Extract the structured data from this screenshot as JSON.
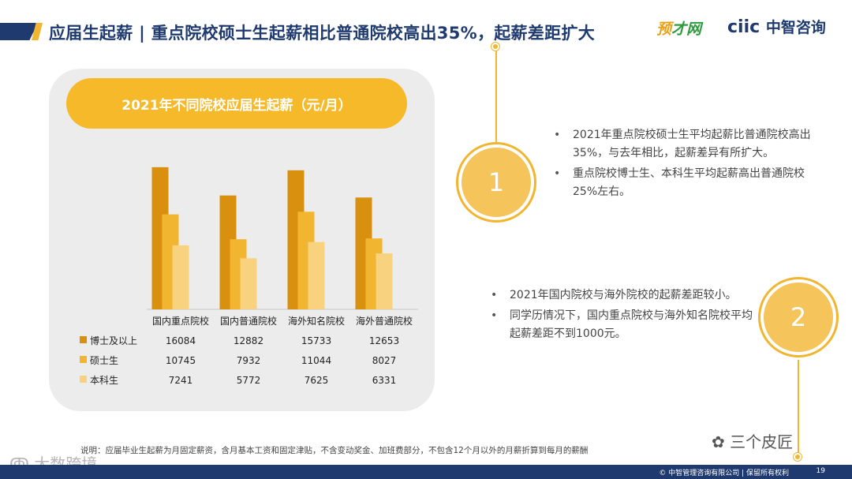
{
  "header": {
    "title": "应届生起薪 | 重点院校硕士生起薪相比普通院校高出35%，起薪差距扩大",
    "logo_left_a": "预",
    "logo_left_b": "才网",
    "logo_right_a": "ciic",
    "logo_right_b": "中智咨询"
  },
  "chart_data": {
    "type": "bar",
    "title": "2021年不同院校应届生起薪（元/月）",
    "categories": [
      "国内重点院校",
      "国内普通院校",
      "海外知名院校",
      "海外普通院校"
    ],
    "series": [
      {
        "name": "博士及以上",
        "values": [
          16084,
          12882,
          15733,
          12653
        ],
        "color": "#d9900f"
      },
      {
        "name": "硕士生",
        "values": [
          10745,
          7932,
          11044,
          8027
        ],
        "color": "#f2b530"
      },
      {
        "name": "本科生",
        "values": [
          7241,
          5772,
          7625,
          6331
        ],
        "color": "#f8d27e"
      }
    ],
    "ylim": [
      0,
      17500
    ],
    "legend": "data-table-left",
    "grid": false
  },
  "point1": {
    "number": "1",
    "bullets": [
      "2021年重点院校硕士生平均起薪比普通院校高出35%，与去年相比，起薪差异有所扩大。",
      "重点院校博士生、本科生平均起薪高出普通院校25%左右。"
    ]
  },
  "point2": {
    "number": "2",
    "bullets": [
      "2021年国内院校与海外院校的起薪差距较小。",
      "同学历情况下，国内重点院校与海外知名院校平均起薪差距不到1000元。"
    ]
  },
  "note": "说明：应届毕业生起薪为月固定薪资，含月基本工资和固定津贴，不含变动奖金、加班费部分，不包含12个月以外的月薪折算到每月的薪酬",
  "wechat_label": "三个皮匠",
  "watermark": "大数跨境",
  "footer": {
    "copyright": "© 中智管理咨询有限公司 | 保留所有权利",
    "page": "19"
  }
}
